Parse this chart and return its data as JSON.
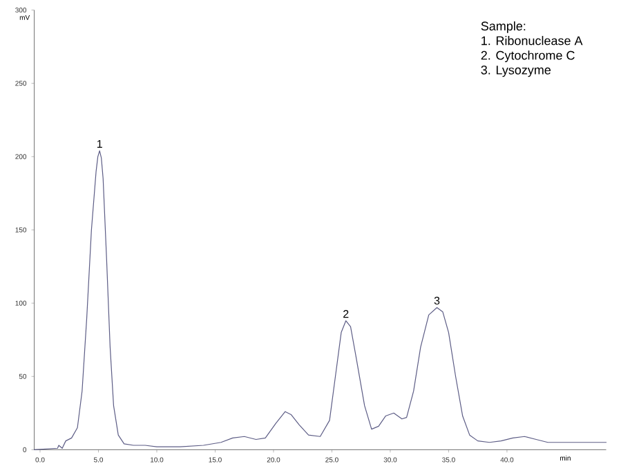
{
  "chart_data": {
    "type": "line",
    "color": "#5c5c85",
    "marker": "none",
    "line_style": "solid",
    "xlabel": "min",
    "ylabel": "mV",
    "xlim": [
      -0.5,
      48.5
    ],
    "ylim": [
      0,
      300
    ],
    "xticks": [
      {
        "value": 0,
        "label": "0.0"
      },
      {
        "value": 5,
        "label": "5.0"
      },
      {
        "value": 10,
        "label": "10.0"
      },
      {
        "value": 15,
        "label": "15.0"
      },
      {
        "value": 20,
        "label": "20.0"
      },
      {
        "value": 25,
        "label": "25.0"
      },
      {
        "value": 30,
        "label": "30.0"
      },
      {
        "value": 35,
        "label": "35.0"
      },
      {
        "value": 40,
        "label": "40.0"
      }
    ],
    "yticks": [
      0,
      50,
      100,
      150,
      200,
      250,
      300
    ],
    "x": [
      -0.5,
      1.5,
      1.6,
      1.9,
      2.2,
      2.7,
      3.2,
      3.6,
      4.0,
      4.4,
      4.8,
      4.95,
      5.1,
      5.25,
      5.4,
      5.7,
      6.0,
      6.3,
      6.7,
      7.2,
      8,
      9,
      10,
      11,
      12,
      14,
      15.5,
      16.5,
      17.5,
      18.5,
      19.3,
      20.2,
      21.0,
      21.5,
      22.2,
      23,
      24,
      24.8,
      25.3,
      25.8,
      26.2,
      26.6,
      27.1,
      27.8,
      28.4,
      29.0,
      29.6,
      30.3,
      31.0,
      31.4,
      32.0,
      32.6,
      33.3,
      34.0,
      34.5,
      35.0,
      35.6,
      36.2,
      36.8,
      37.5,
      38.5,
      39.5,
      40.5,
      41.5,
      42.5,
      43.5,
      45,
      48.5
    ],
    "values": [
      0,
      1,
      3,
      1,
      6,
      8,
      15,
      40,
      90,
      150,
      190,
      200,
      204,
      199,
      185,
      130,
      70,
      30,
      10,
      4,
      3,
      3,
      2,
      2,
      2,
      3,
      5,
      8,
      9,
      7,
      8,
      18,
      26,
      24,
      17,
      10,
      9,
      20,
      50,
      80,
      88,
      84,
      62,
      30,
      14,
      16,
      23,
      25,
      21,
      22,
      40,
      70,
      92,
      97,
      94,
      80,
      50,
      23,
      10,
      6,
      5,
      6,
      8,
      9,
      7,
      5,
      5,
      5
    ],
    "annotations": [
      "Sample:",
      "1. Ribonuclease A",
      "2. Cytochrome C",
      "3. Lysozyme",
      {
        "text": "1",
        "x": 5.1,
        "y": 204
      },
      {
        "text": "2",
        "x": 26.2,
        "y": 88
      },
      {
        "text": "3",
        "x": 34.0,
        "y": 97
      }
    ]
  }
}
